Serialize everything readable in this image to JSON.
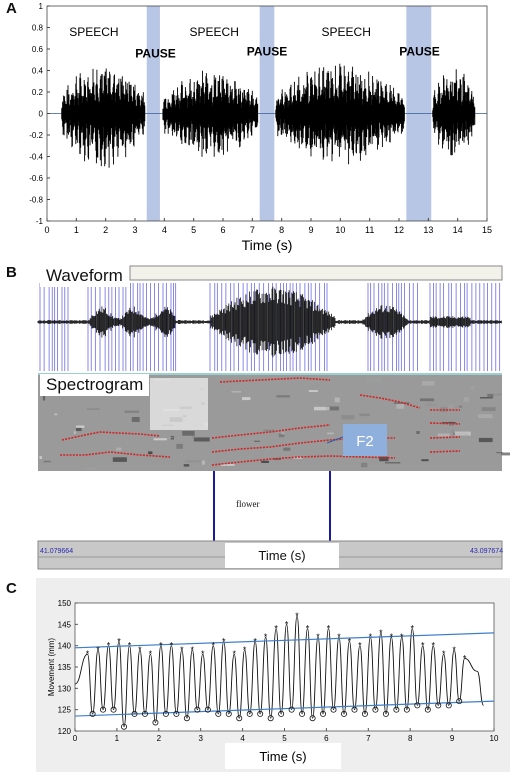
{
  "panels": {
    "a": "A",
    "b": "B",
    "c": "C"
  },
  "chart_data": [
    {
      "type": "line",
      "panel": "A",
      "title": "",
      "xlabel": "Time (s)",
      "ylabel": "",
      "xlim": [
        0,
        15
      ],
      "ylim": [
        -1,
        1
      ],
      "x_ticks": [
        "0",
        "1",
        "2",
        "3",
        "4",
        "5",
        "6",
        "7",
        "8",
        "9",
        "10",
        "11",
        "12",
        "13",
        "14",
        "15"
      ],
      "y_ticks": [
        "1",
        "0.8",
        "0.6",
        "0.4",
        "0.2",
        "0",
        "-0.2",
        "-0.4",
        "-0.6",
        "-0.8",
        "-1"
      ],
      "annotations": [
        {
          "text": "SPEECH",
          "x": 1.6,
          "y": 0.72
        },
        {
          "text": "PAUSE",
          "x": 3.7,
          "y": 0.52
        },
        {
          "text": "SPEECH",
          "x": 5.7,
          "y": 0.72
        },
        {
          "text": "PAUSE",
          "x": 7.5,
          "y": 0.54
        },
        {
          "text": "SPEECH",
          "x": 10.2,
          "y": 0.72
        },
        {
          "text": "PAUSE",
          "x": 12.7,
          "y": 0.54
        }
      ],
      "pauses": [
        {
          "start": 3.4,
          "end": 3.85
        },
        {
          "start": 7.25,
          "end": 7.75
        },
        {
          "start": 12.25,
          "end": 13.1
        }
      ],
      "speech_segments": [
        {
          "start": 0.5,
          "end": 3.35,
          "amp": 0.5
        },
        {
          "start": 3.95,
          "end": 7.2,
          "amp": 0.42
        },
        {
          "start": 7.8,
          "end": 12.2,
          "amp": 0.48
        },
        {
          "start": 13.15,
          "end": 14.6,
          "amp": 0.45
        }
      ],
      "colors": {
        "pause": "#b8c6e6",
        "wave": "#000000"
      }
    },
    {
      "type": "line",
      "panel": "B",
      "waveform_label": "Waveform",
      "spectrogram_label": "Spectrogram",
      "formant_label": "F2",
      "word_label": "flower",
      "time_label": "Time (s)",
      "time_start": "41.079664",
      "time_end": "43.097674",
      "colors": {
        "voicing": "#3a3adc",
        "formant": "#d42424",
        "f2_box": "#8fb0dd",
        "boundary": "#1a1a9a"
      }
    },
    {
      "type": "line",
      "panel": "C",
      "title": "",
      "xlabel": "Time (s)",
      "ylabel": "Movement (mm)",
      "xlim": [
        0,
        10
      ],
      "ylim": [
        120,
        150
      ],
      "x_ticks": [
        "0",
        "1",
        "2",
        "3",
        "4",
        "5",
        "6",
        "7",
        "8",
        "9",
        "10"
      ],
      "y_ticks": [
        "120",
        "125",
        "130",
        "135",
        "140",
        "145",
        "150"
      ],
      "upper_trend": {
        "start": [
          0,
          139.5
        ],
        "end": [
          10,
          143
        ]
      },
      "lower_trend": {
        "start": [
          0,
          123.5
        ],
        "end": [
          10,
          127
        ]
      },
      "peaks": {
        "x": [
          0.3,
          0.55,
          0.8,
          1.05,
          1.3,
          1.55,
          1.8,
          2.05,
          2.3,
          2.55,
          2.8,
          3.05,
          3.3,
          3.55,
          3.8,
          4.05,
          4.3,
          4.55,
          4.8,
          5.05,
          5.3,
          5.55,
          5.8,
          6.05,
          6.3,
          6.55,
          6.8,
          7.05,
          7.3,
          7.55,
          7.8,
          8.05,
          8.3,
          8.55,
          8.8,
          9.05,
          9.3
        ],
        "y": [
          138,
          139,
          140,
          141,
          140,
          139,
          138,
          140,
          140,
          139,
          139,
          138,
          140,
          141,
          138,
          139,
          141,
          142,
          144,
          145,
          147,
          144,
          142,
          144,
          142,
          141,
          140,
          142,
          143,
          142,
          142,
          144,
          140,
          140,
          138,
          139,
          137
        ]
      },
      "troughs": {
        "x": [
          0.42,
          0.67,
          0.92,
          1.17,
          1.42,
          1.67,
          1.92,
          2.17,
          2.42,
          2.67,
          2.92,
          3.17,
          3.42,
          3.67,
          3.92,
          4.17,
          4.42,
          4.67,
          4.92,
          5.17,
          5.42,
          5.67,
          5.92,
          6.17,
          6.42,
          6.67,
          6.92,
          7.17,
          7.42,
          7.67,
          7.92,
          8.17,
          8.42,
          8.67,
          8.92,
          9.17
        ],
        "y": [
          124,
          125,
          125,
          121,
          124,
          124,
          122,
          124,
          124,
          123,
          125,
          125,
          124,
          124,
          123,
          124,
          124,
          123,
          124,
          125,
          124,
          123,
          124,
          125,
          124,
          125,
          124,
          125,
          124,
          125,
          125,
          126,
          125,
          126,
          126,
          127
        ]
      },
      "colors": {
        "trace": "#111111",
        "trend": "#3d7ec9",
        "panel_bg": "#eeeeee"
      }
    }
  ]
}
